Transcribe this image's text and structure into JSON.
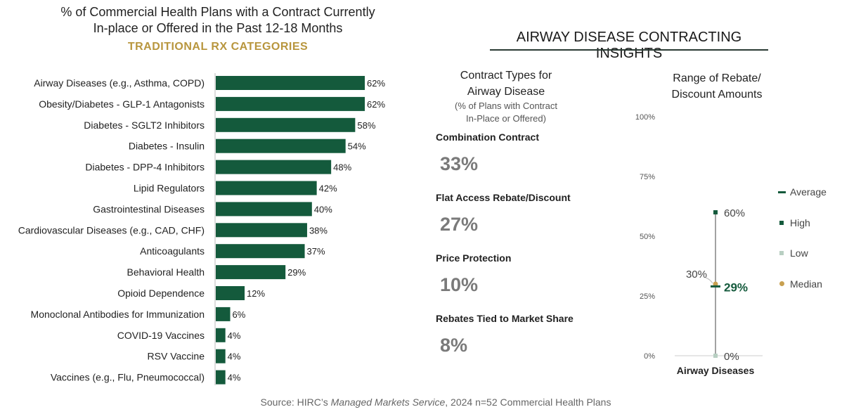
{
  "left_panel": {
    "title_line1": "% of Commercial Health Plans with a Contract Currently",
    "title_line2": "In-place or Offered in the Past 12-18 Months",
    "subtitle": "TRADITIONAL RX CATEGORIES"
  },
  "right_panel": {
    "title": "AIRWAY DISEASE CONTRACTING INSIGHTS",
    "contract_types": {
      "heading_line1": "Contract Types for",
      "heading_line2": "Airway Disease",
      "note_line1": "(% of Plans with Contract",
      "note_line2": "In-Place or Offered)",
      "items": [
        {
          "label": "Combination Contract",
          "value": "33%"
        },
        {
          "label": "Flat Access Rebate/Discount",
          "value": "27%"
        },
        {
          "label": "Price Protection",
          "value": "10%"
        },
        {
          "label": "Rebates Tied to Market Share",
          "value": "8%"
        }
      ]
    },
    "range": {
      "heading_line1": "Range of Rebate/",
      "heading_line2": "Discount Amounts"
    },
    "legend": [
      "Average",
      "High",
      "Low",
      "Median"
    ]
  },
  "source": {
    "prefix": "Source: HIRC’s ",
    "italic": "Managed Markets Service",
    "suffix": ", 2024 n=52 Commercial Health Plans"
  },
  "colors": {
    "bar": "#145a3c",
    "accent_gold": "#b8963e",
    "high": "#145a3c",
    "low": "#b8cfc2",
    "median": "#c8a050",
    "average": "#145a3c"
  },
  "chart_data": [
    {
      "type": "bar",
      "orientation": "horizontal",
      "title": "% of Commercial Health Plans with a Contract Currently In-place or Offered in the Past 12-18 Months",
      "subtitle": "TRADITIONAL RX CATEGORIES",
      "categories": [
        "Airway Diseases (e.g., Asthma, COPD)",
        "Obesity/Diabetes - GLP-1 Antagonists",
        "Diabetes - SGLT2 Inhibitors",
        "Diabetes - Insulin",
        "Diabetes - DPP-4 Inhibitors",
        "Lipid Regulators",
        "Gastrointestinal Diseases",
        "Cardiovascular Diseases (e.g., CAD, CHF)",
        "Anticoagulants",
        "Behavioral Health",
        "Opioid Dependence",
        "Monoclonal Antibodies for Immunization",
        "COVID-19 Vaccines",
        "RSV Vaccine",
        "Vaccines (e.g., Flu, Pneumococcal)"
      ],
      "values": [
        62,
        62,
        58,
        54,
        48,
        42,
        40,
        38,
        37,
        29,
        12,
        6,
        4,
        4,
        4
      ],
      "value_labels": [
        "62%",
        "62%",
        "58%",
        "54%",
        "48%",
        "42%",
        "40%",
        "38%",
        "37%",
        "29%",
        "12%",
        "6%",
        "4%",
        "4%",
        "4%"
      ],
      "unit": "%"
    },
    {
      "type": "range",
      "title": "Range of Rebate/Discount Amounts",
      "category": "Airway Diseases",
      "ylim": [
        0,
        100
      ],
      "y_ticks": [
        "0%",
        "25%",
        "50%",
        "75%",
        "100%"
      ],
      "y_tick_values": [
        0,
        25,
        50,
        75,
        100
      ],
      "series": [
        {
          "name": "Average",
          "value": 29,
          "label": "29%"
        },
        {
          "name": "High",
          "value": 60,
          "label": "60%"
        },
        {
          "name": "Low",
          "value": 0,
          "label": "0%"
        },
        {
          "name": "Median",
          "value": 30,
          "label": "30%"
        }
      ],
      "legend_position": "right"
    }
  ]
}
